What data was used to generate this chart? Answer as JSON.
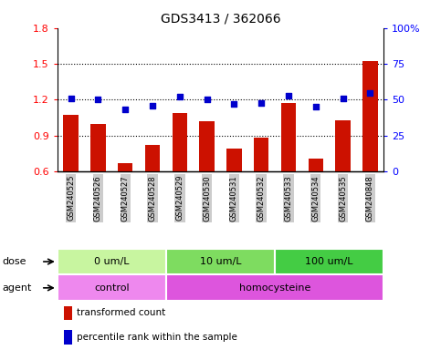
{
  "title": "GDS3413 / 362066",
  "samples": [
    "GSM240525",
    "GSM240526",
    "GSM240527",
    "GSM240528",
    "GSM240529",
    "GSM240530",
    "GSM240531",
    "GSM240532",
    "GSM240533",
    "GSM240534",
    "GSM240535",
    "GSM240848"
  ],
  "bar_values": [
    1.07,
    1.0,
    0.67,
    0.82,
    1.09,
    1.02,
    0.79,
    0.88,
    1.17,
    0.71,
    1.03,
    1.52
  ],
  "dot_values_pct": [
    51,
    50,
    43,
    46,
    52,
    50,
    47,
    48,
    53,
    45,
    51,
    55
  ],
  "bar_color": "#cc1100",
  "dot_color": "#0000cc",
  "ylim_left": [
    0.6,
    1.8
  ],
  "ylim_right": [
    0,
    100
  ],
  "yticks_left": [
    0.6,
    0.9,
    1.2,
    1.5,
    1.8
  ],
  "yticks_right": [
    0,
    25,
    50,
    75,
    100
  ],
  "ytick_labels_right": [
    "0",
    "25",
    "50",
    "75",
    "100%"
  ],
  "hlines": [
    0.9,
    1.2,
    1.5
  ],
  "dose_groups": [
    {
      "label": "0 um/L",
      "start": 0,
      "end": 4,
      "color": "#c8f5a0"
    },
    {
      "label": "10 um/L",
      "start": 4,
      "end": 8,
      "color": "#7edc60"
    },
    {
      "label": "100 um/L",
      "start": 8,
      "end": 12,
      "color": "#44cc44"
    }
  ],
  "agent_groups": [
    {
      "label": "control",
      "start": 0,
      "end": 4,
      "color": "#ee88ee"
    },
    {
      "label": "homocysteine",
      "start": 4,
      "end": 12,
      "color": "#dd66dd"
    }
  ],
  "dose_label": "dose",
  "agent_label": "agent",
  "legend_bar": "transformed count",
  "legend_dot": "percentile rank within the sample",
  "bar_width": 0.55,
  "xlabel_color": "#333333",
  "tick_bg_color": "#cccccc"
}
